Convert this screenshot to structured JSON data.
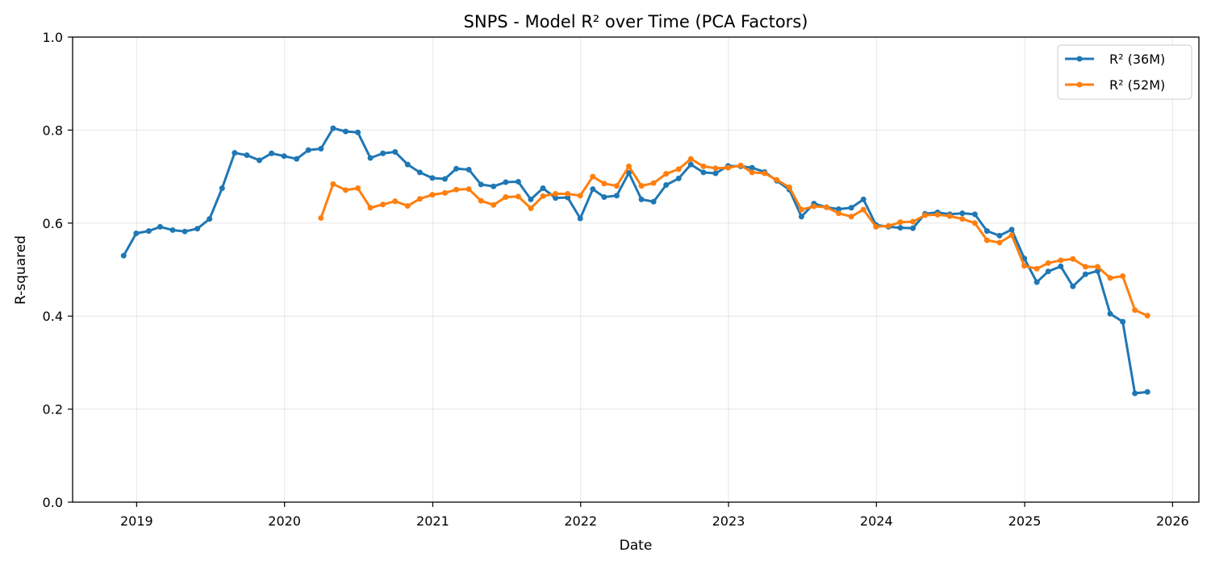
{
  "chart_data": {
    "type": "line",
    "title": "SNPS - Model R² over Time (PCA Factors)",
    "xlabel": "Date",
    "ylabel": "R-squared",
    "ylim": [
      0,
      1
    ],
    "xlim": [
      "2018-07-27",
      "2026-03-07"
    ],
    "x_ticks": [
      "2019",
      "2020",
      "2021",
      "2022",
      "2023",
      "2024",
      "2025",
      "2026"
    ],
    "y_ticks": [
      "0.0",
      "0.2",
      "0.4",
      "0.6",
      "0.8",
      "1.0"
    ],
    "grid": true,
    "legend_position": "top-right",
    "series": [
      {
        "name": "R² (36M)",
        "color": "#1f77b4",
        "x": [
          "2018-11-30",
          "2018-12-31",
          "2019-01-31",
          "2019-02-28",
          "2019-03-31",
          "2019-04-30",
          "2019-05-31",
          "2019-06-30",
          "2019-07-31",
          "2019-08-31",
          "2019-09-30",
          "2019-10-31",
          "2019-11-30",
          "2019-12-31",
          "2020-01-31",
          "2020-02-29",
          "2020-03-31",
          "2020-04-30",
          "2020-05-31",
          "2020-06-30",
          "2020-07-31",
          "2020-08-31",
          "2020-09-30",
          "2020-10-31",
          "2020-11-30",
          "2020-12-31",
          "2021-01-31",
          "2021-02-28",
          "2021-03-31",
          "2021-04-30",
          "2021-05-31",
          "2021-06-30",
          "2021-07-31",
          "2021-08-31",
          "2021-09-30",
          "2021-10-31",
          "2021-11-30",
          "2021-12-31",
          "2022-01-31",
          "2022-02-28",
          "2022-03-31",
          "2022-04-30",
          "2022-05-31",
          "2022-06-30",
          "2022-07-31",
          "2022-08-31",
          "2022-09-30",
          "2022-10-31",
          "2022-11-30",
          "2022-12-31",
          "2023-01-31",
          "2023-02-28",
          "2023-03-31",
          "2023-04-30",
          "2023-05-31",
          "2023-06-30",
          "2023-07-31",
          "2023-08-31",
          "2023-09-30",
          "2023-10-31",
          "2023-11-30",
          "2023-12-31",
          "2024-01-31",
          "2024-02-29",
          "2024-03-31",
          "2024-04-30",
          "2024-05-31",
          "2024-06-30",
          "2024-07-31",
          "2024-08-31",
          "2024-09-30",
          "2024-10-31",
          "2024-11-30",
          "2024-12-31",
          "2025-01-31",
          "2025-02-28",
          "2025-03-31",
          "2025-04-30",
          "2025-05-31",
          "2025-06-30",
          "2025-07-31",
          "2025-08-31",
          "2025-09-30",
          "2025-10-31"
        ],
        "y": [
          0.53,
          0.578,
          0.583,
          0.592,
          0.585,
          0.582,
          0.588,
          0.609,
          0.675,
          0.751,
          0.746,
          0.735,
          0.75,
          0.744,
          0.738,
          0.757,
          0.76,
          0.804,
          0.797,
          0.795,
          0.74,
          0.75,
          0.753,
          0.726,
          0.709,
          0.697,
          0.695,
          0.717,
          0.715,
          0.683,
          0.679,
          0.688,
          0.689,
          0.651,
          0.675,
          0.654,
          0.655,
          0.61,
          0.673,
          0.656,
          0.659,
          0.708,
          0.651,
          0.646,
          0.682,
          0.696,
          0.726,
          0.709,
          0.707,
          0.723,
          0.722,
          0.719,
          0.71,
          0.691,
          0.672,
          0.614,
          0.642,
          0.634,
          0.63,
          0.633,
          0.651,
          0.596,
          0.592,
          0.59,
          0.589,
          0.62,
          0.623,
          0.619,
          0.621,
          0.619,
          0.583,
          0.573,
          0.586,
          0.524,
          0.473,
          0.496,
          0.507,
          0.464,
          0.49,
          0.497,
          0.405,
          0.388,
          0.234,
          0.237
        ]
      },
      {
        "name": "R² (52M)",
        "color": "#ff7f0e",
        "x": [
          "2020-03-31",
          "2020-04-30",
          "2020-05-31",
          "2020-06-30",
          "2020-07-31",
          "2020-08-31",
          "2020-09-30",
          "2020-10-31",
          "2020-11-30",
          "2020-12-31",
          "2021-01-31",
          "2021-02-28",
          "2021-03-31",
          "2021-04-30",
          "2021-05-31",
          "2021-06-30",
          "2021-07-31",
          "2021-08-31",
          "2021-09-30",
          "2021-10-31",
          "2021-11-30",
          "2021-12-31",
          "2022-01-31",
          "2022-02-28",
          "2022-03-31",
          "2022-04-30",
          "2022-05-31",
          "2022-06-30",
          "2022-07-31",
          "2022-08-31",
          "2022-09-30",
          "2022-10-31",
          "2022-11-30",
          "2022-12-31",
          "2023-01-31",
          "2023-02-28",
          "2023-03-31",
          "2023-04-30",
          "2023-05-31",
          "2023-06-30",
          "2023-07-31",
          "2023-08-31",
          "2023-09-30",
          "2023-10-31",
          "2023-11-30",
          "2023-12-31",
          "2024-01-31",
          "2024-02-29",
          "2024-03-31",
          "2024-04-30",
          "2024-05-31",
          "2024-06-30",
          "2024-07-31",
          "2024-08-31",
          "2024-09-30",
          "2024-10-31",
          "2024-11-30",
          "2024-12-31",
          "2025-01-31",
          "2025-02-28",
          "2025-03-31",
          "2025-04-30",
          "2025-05-31",
          "2025-06-30",
          "2025-07-31",
          "2025-08-31",
          "2025-09-30",
          "2025-10-31"
        ],
        "y": [
          0.611,
          0.684,
          0.671,
          0.675,
          0.633,
          0.64,
          0.647,
          0.637,
          0.652,
          0.661,
          0.665,
          0.672,
          0.673,
          0.648,
          0.639,
          0.656,
          0.657,
          0.632,
          0.658,
          0.663,
          0.663,
          0.659,
          0.7,
          0.685,
          0.68,
          0.722,
          0.68,
          0.686,
          0.706,
          0.716,
          0.738,
          0.722,
          0.718,
          0.719,
          0.724,
          0.709,
          0.707,
          0.693,
          0.677,
          0.629,
          0.636,
          0.634,
          0.621,
          0.614,
          0.629,
          0.592,
          0.594,
          0.602,
          0.603,
          0.617,
          0.618,
          0.615,
          0.609,
          0.6,
          0.563,
          0.558,
          0.574,
          0.508,
          0.502,
          0.514,
          0.52,
          0.523,
          0.506,
          0.506,
          0.482,
          0.486,
          0.413,
          0.401
        ]
      }
    ]
  }
}
